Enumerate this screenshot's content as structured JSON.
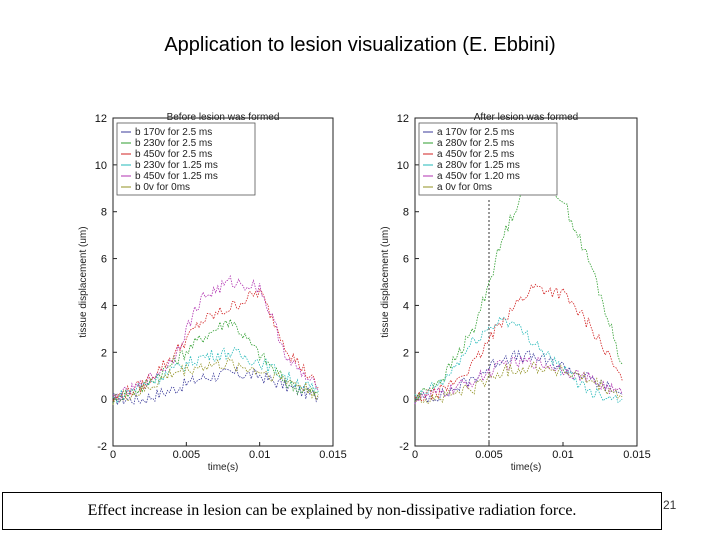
{
  "slide": {
    "title": "Application to lesion visualization (E. Ebbini)",
    "caption": "Effect increase in lesion can be explained by non-dissipative radiation force.",
    "page_number": "21"
  },
  "chart_data": [
    {
      "type": "line",
      "title": "Before lesion was formed",
      "xlabel": "time(s)",
      "ylabel": "tissue displacement (um)",
      "xlim": [
        0,
        0.015
      ],
      "ylim": [
        -2,
        12
      ],
      "xticks": [
        "0",
        "0.005",
        "0.01",
        "0.015"
      ],
      "yticks": [
        "-2",
        "0",
        "2",
        "4",
        "6",
        "8",
        "10",
        "12"
      ],
      "grid": false,
      "legend_position": "top-left",
      "series": [
        {
          "name": "b 170v for 2.5 ms",
          "color": "#3a3a9a",
          "x": [
            0,
            0.002,
            0.004,
            0.006,
            0.008,
            0.01,
            0.012,
            0.014
          ],
          "y": [
            0,
            0,
            0.4,
            0.9,
            1.1,
            1.0,
            0.5,
            0.1
          ]
        },
        {
          "name": "b 230v for 2.5 ms",
          "color": "#2e9e2e",
          "x": [
            0,
            0.002,
            0.004,
            0.006,
            0.008,
            0.01,
            0.012,
            0.014
          ],
          "y": [
            0,
            0.5,
            1.5,
            2.6,
            3.4,
            1.9,
            0.6,
            0.2
          ]
        },
        {
          "name": "b 450v for 2.5 ms",
          "color": "#d22222",
          "x": [
            0,
            0.002,
            0.004,
            0.006,
            0.008,
            0.01,
            0.012,
            0.014
          ],
          "y": [
            0,
            0.6,
            1.8,
            3.3,
            3.9,
            4.6,
            2.0,
            0.5
          ]
        },
        {
          "name": "b 230v for 1.25 ms",
          "color": "#22b8b8",
          "x": [
            0,
            0.002,
            0.004,
            0.006,
            0.008,
            0.01,
            0.012,
            0.014
          ],
          "y": [
            0,
            0.6,
            1.2,
            1.8,
            2.0,
            1.6,
            0.9,
            0.3
          ]
        },
        {
          "name": "b 450v for 1.25 ms",
          "color": "#b030b0",
          "x": [
            0,
            0.002,
            0.004,
            0.006,
            0.008,
            0.01,
            0.012,
            0.014
          ],
          "y": [
            0,
            0.6,
            1.6,
            4.3,
            5.0,
            4.8,
            1.6,
            0.4
          ]
        },
        {
          "name": "b 0v for 0ms",
          "color": "#909020",
          "x": [
            0,
            0.002,
            0.004,
            0.006,
            0.008,
            0.01,
            0.012,
            0.014
          ],
          "y": [
            0,
            0.3,
            1.1,
            1.4,
            1.5,
            1.2,
            0.8,
            0.2
          ]
        }
      ]
    },
    {
      "type": "line",
      "title": "After lesion was formed",
      "xlabel": "time(s)",
      "ylabel": "tissue displacement (um)",
      "xlim": [
        0,
        0.015
      ],
      "ylim": [
        -2,
        12
      ],
      "xticks": [
        "0",
        "0.005",
        "0.01",
        "0.015"
      ],
      "yticks": [
        "-2",
        "0",
        "2",
        "4",
        "6",
        "8",
        "10",
        "12"
      ],
      "grid": false,
      "legend_position": "top-left",
      "vline_x": 0.005,
      "series": [
        {
          "name": "a 170v for 2.5 ms",
          "color": "#3a3a9a",
          "x": [
            0,
            0.002,
            0.004,
            0.006,
            0.008,
            0.01,
            0.012,
            0.014
          ],
          "y": [
            0,
            0.2,
            0.9,
            1.8,
            1.8,
            1.4,
            0.8,
            0.2
          ]
        },
        {
          "name": "a 280v for 2.5 ms",
          "color": "#2e9e2e",
          "x": [
            0,
            0.002,
            0.004,
            0.006,
            0.008,
            0.01,
            0.012,
            0.014
          ],
          "y": [
            0,
            1.0,
            3.0,
            7.0,
            10.0,
            8.5,
            5.5,
            1.5
          ]
        },
        {
          "name": "a 450v for 2.5 ms",
          "color": "#d22222",
          "x": [
            0,
            0.002,
            0.004,
            0.006,
            0.008,
            0.01,
            0.012,
            0.014
          ],
          "y": [
            0,
            0.4,
            1.5,
            3.5,
            4.8,
            4.5,
            3.0,
            0.8
          ]
        },
        {
          "name": "a 280v for 1.25 ms",
          "color": "#22b8b8",
          "x": [
            0,
            0.002,
            0.004,
            0.006,
            0.008,
            0.01,
            0.012,
            0.014
          ],
          "y": [
            0,
            0.8,
            2.5,
            3.5,
            2.5,
            1.2,
            0.3,
            0.0
          ]
        },
        {
          "name": "a 450v for 1.20 ms",
          "color": "#b030b0",
          "x": [
            0,
            0.002,
            0.004,
            0.006,
            0.008,
            0.01,
            0.012,
            0.014
          ],
          "y": [
            0,
            0.3,
            0.8,
            1.5,
            1.6,
            1.3,
            0.8,
            0.2
          ]
        },
        {
          "name": "a 0v for 0ms",
          "color": "#909020",
          "x": [
            0,
            0.002,
            0.004,
            0.006,
            0.008,
            0.01,
            0.012,
            0.014
          ],
          "y": [
            0,
            0.1,
            0.5,
            1.2,
            1.4,
            1.2,
            0.7,
            0.1
          ]
        }
      ]
    }
  ]
}
